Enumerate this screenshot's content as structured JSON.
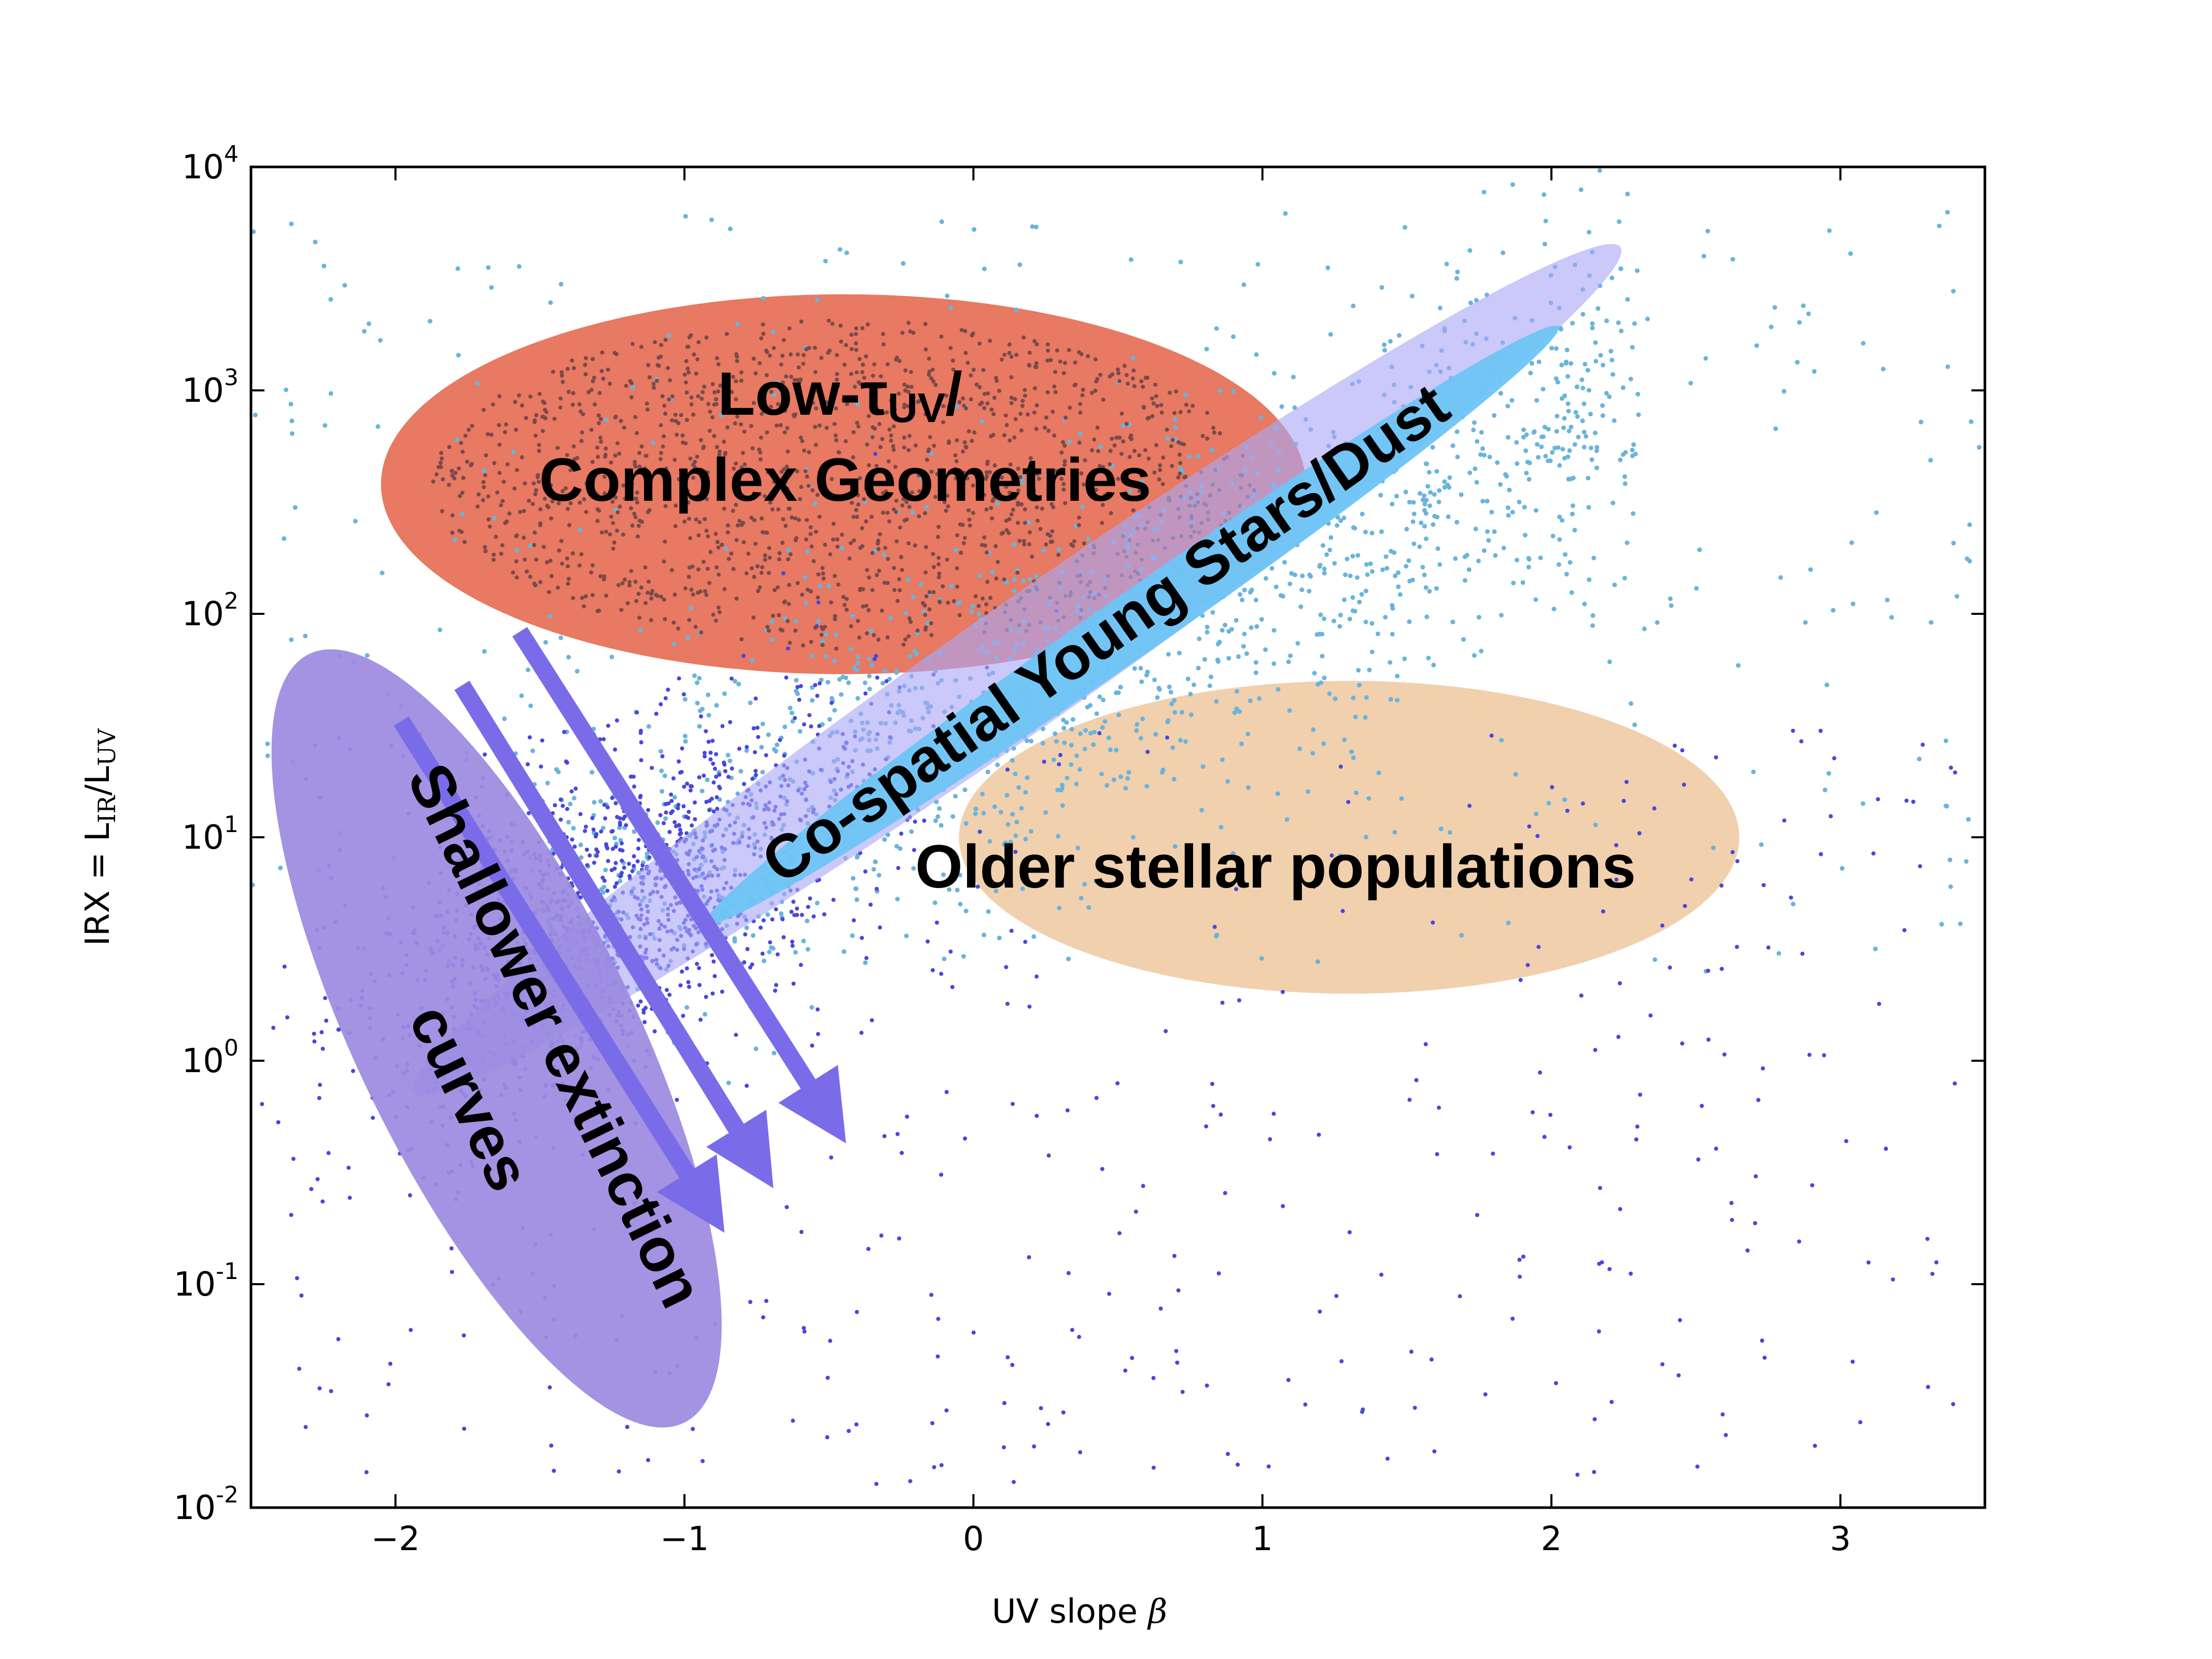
{
  "chart_data": {
    "type": "scatter",
    "xlabel": "UV slope",
    "xlabel_symbol": "β",
    "ylabel": "IRX = L",
    "ylabel_sub1": "IR",
    "ylabel_mid": "/L",
    "ylabel_sub2": "UV",
    "xlim": [
      -2.5,
      3.5
    ],
    "ylim_log10": [
      -2,
      4
    ],
    "y_scale": "log",
    "grid": false,
    "legend": "none",
    "x_ticks": [
      {
        "value": -2,
        "label": "−2"
      },
      {
        "value": -1,
        "label": "−1"
      },
      {
        "value": 0,
        "label": "0"
      },
      {
        "value": 1,
        "label": "1"
      },
      {
        "value": 2,
        "label": "2"
      },
      {
        "value": 3,
        "label": "3"
      }
    ],
    "y_ticks": [
      {
        "exp": -2,
        "base": "10",
        "sup": "-2"
      },
      {
        "exp": -1,
        "base": "10",
        "sup": "-1"
      },
      {
        "exp": 0,
        "base": "10",
        "sup": "0"
      },
      {
        "exp": 1,
        "base": "10",
        "sup": "1"
      },
      {
        "exp": 2,
        "base": "10",
        "sup": "2"
      },
      {
        "exp": 3,
        "base": "10",
        "sup": "3"
      },
      {
        "exp": 4,
        "base": "10",
        "sup": "4"
      }
    ],
    "regions": [
      {
        "name": "low-tau-complex-geometries",
        "cx": -0.45,
        "cy_log": 2.58,
        "rx_beta": 1.6,
        "ry_log": 0.85,
        "angle": 0,
        "color": "#e66e55",
        "opacity": 0.92
      },
      {
        "name": "older-stellar-populations",
        "cx": 1.3,
        "cy_log": 1.0,
        "rx_beta": 1.35,
        "ry_log": 0.7,
        "angle": 0,
        "color": "#eec8a0",
        "opacity": 0.85
      },
      {
        "name": "co-spatial-outer",
        "cx": 0.15,
        "cy_log": 1.75,
        "rx_beta": 2.55,
        "ry_log": 0.28,
        "angle": -35,
        "color": "#a9a8f7",
        "opacity": 0.62
      },
      {
        "name": "co-spatial-inner",
        "cx": 0.55,
        "cy_log": 1.95,
        "rx_beta": 1.8,
        "ry_log": 0.14,
        "angle": -35,
        "color": "#6ec5f5",
        "opacity": 0.95
      },
      {
        "name": "shallower-extinction-curves",
        "cx": -1.65,
        "cy_log": 0.1,
        "rx_beta": 1.48,
        "ry_log": 0.62,
        "angle": 64,
        "color": "#9b8ae0",
        "opacity": 0.92
      }
    ],
    "arrows": [
      {
        "x1": -1.98,
        "y1_log": 1.52,
        "x2": -0.92,
        "y2_log": -0.65
      },
      {
        "x1": -1.77,
        "y1_log": 1.68,
        "x2": -0.75,
        "y2_log": -0.45
      },
      {
        "x1": -1.57,
        "y1_log": 1.92,
        "x2": -0.5,
        "y2_log": -0.25
      }
    ],
    "arrow_color": "#7a6ce8",
    "labels": {
      "low_tau_prefix": "Low-τ",
      "low_tau_sub": "UV",
      "low_tau_suffix": "/",
      "complex": "Complex Geometries",
      "cospatial": "Co-spatial Young Stars/Dust",
      "older": "Older stellar populations",
      "shallower": "Shallower extinction",
      "curves": "curves"
    },
    "scatter_colors": {
      "cyan": "#6ab4dc",
      "blue": "#4a46dc",
      "dark": "#7a4a4a"
    }
  }
}
